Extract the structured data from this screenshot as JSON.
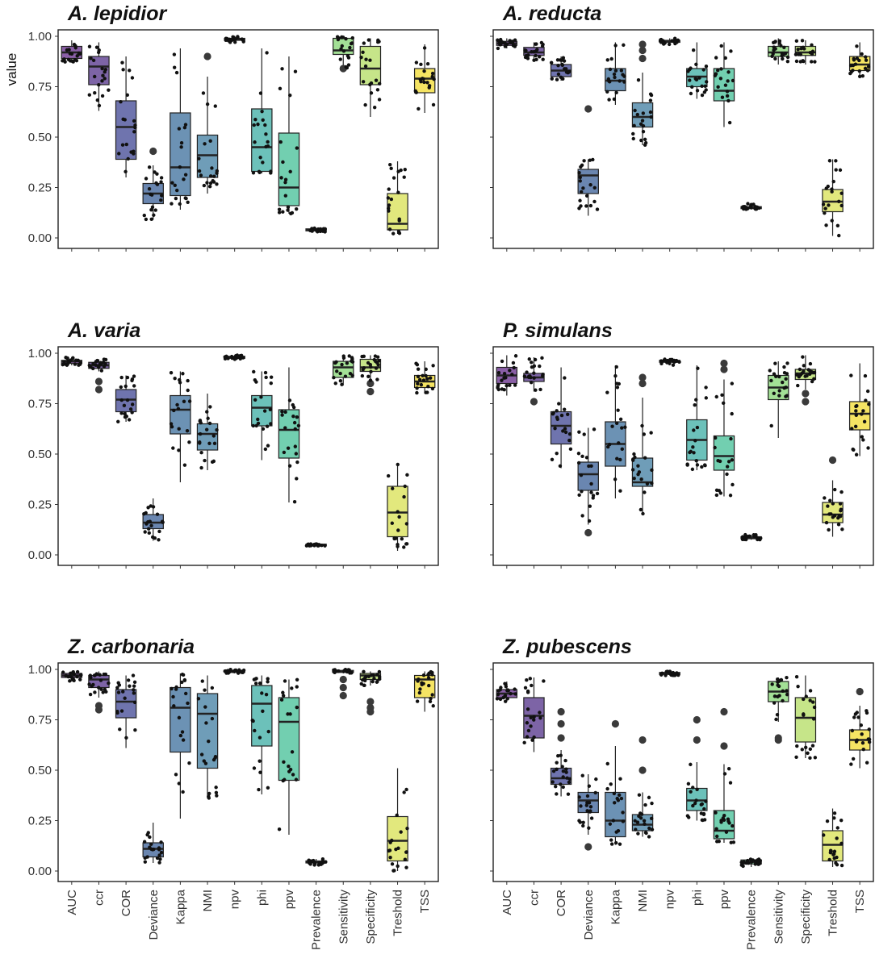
{
  "chart_data": {
    "type": "box",
    "ylabel": "value",
    "ylim": [
      0,
      1
    ],
    "yticks": [
      "0.00",
      "0.25",
      "0.50",
      "0.75",
      "1.00"
    ],
    "categories": [
      "AUC",
      "ccr",
      "COR",
      "Deviance",
      "Kappa",
      "NMI",
      "npv",
      "phi",
      "ppv",
      "Prevalence",
      "Sensitivity",
      "Specificity",
      "Treshold",
      "TSS"
    ],
    "colors": [
      "#8a5fa6",
      "#7d64a6",
      "#6f74ae",
      "#6a86b0",
      "#6c92b4",
      "#6f9db8",
      "#6fb3bd",
      "#6cc1ba",
      "#72cfb0",
      "#8bd9a2",
      "#a3e096",
      "#c6e589",
      "#e2e87d",
      "#f5e463"
    ],
    "panels": [
      {
        "title": "A. lepidior",
        "boxes": [
          [
            0.87,
            0.89,
            0.92,
            0.95,
            0.98
          ],
          [
            0.63,
            0.76,
            0.85,
            0.9,
            0.97
          ],
          [
            0.3,
            0.39,
            0.55,
            0.68,
            0.9
          ],
          [
            0.09,
            0.17,
            0.22,
            0.27,
            0.36
          ],
          [
            0.14,
            0.21,
            0.35,
            0.62,
            0.94
          ],
          [
            0.22,
            0.3,
            0.41,
            0.51,
            0.8
          ],
          [
            0.97,
            0.98,
            0.985,
            0.99,
            1.0
          ],
          [
            0.32,
            0.33,
            0.45,
            0.64,
            0.94
          ],
          [
            0.12,
            0.16,
            0.25,
            0.52,
            0.9
          ],
          [
            0.03,
            0.035,
            0.04,
            0.045,
            0.05
          ],
          [
            0.84,
            0.91,
            0.93,
            0.99,
            1.0
          ],
          [
            0.6,
            0.76,
            0.84,
            0.95,
            0.99
          ],
          [
            0.02,
            0.04,
            0.07,
            0.22,
            0.38
          ],
          [
            0.62,
            0.72,
            0.79,
            0.84,
            0.96
          ]
        ],
        "outliers": [
          [],
          [],
          [],
          [
            0.43
          ],
          [],
          [
            0.9
          ],
          [],
          [],
          [],
          [],
          [
            0.84
          ],
          [],
          [],
          []
        ]
      },
      {
        "title": "A. reducta",
        "boxes": [
          [
            0.94,
            0.955,
            0.965,
            0.975,
            0.99
          ],
          [
            0.88,
            0.905,
            0.92,
            0.945,
            0.97
          ],
          [
            0.78,
            0.8,
            0.83,
            0.86,
            0.9
          ],
          [
            0.11,
            0.22,
            0.31,
            0.34,
            0.39
          ],
          [
            0.66,
            0.73,
            0.78,
            0.84,
            0.97
          ],
          [
            0.46,
            0.55,
            0.6,
            0.67,
            0.82
          ],
          [
            0.96,
            0.97,
            0.975,
            0.98,
            0.99
          ],
          [
            0.69,
            0.75,
            0.8,
            0.84,
            0.97
          ],
          [
            0.55,
            0.68,
            0.73,
            0.84,
            0.97
          ],
          [
            0.14,
            0.145,
            0.15,
            0.155,
            0.17
          ],
          [
            0.86,
            0.9,
            0.92,
            0.95,
            0.99
          ],
          [
            0.86,
            0.905,
            0.92,
            0.95,
            0.98
          ],
          [
            0.01,
            0.13,
            0.18,
            0.24,
            0.39
          ],
          [
            0.8,
            0.83,
            0.86,
            0.9,
            0.97
          ]
        ],
        "outliers": [
          [],
          [],
          [],
          [
            0.64
          ],
          [],
          [
            0.89,
            0.93,
            0.96
          ],
          [],
          [],
          [],
          [],
          [],
          [],
          [],
          []
        ]
      },
      {
        "title": "A. varia",
        "boxes": [
          [
            0.94,
            0.95,
            0.96,
            0.965,
            0.98
          ],
          [
            0.91,
            0.925,
            0.94,
            0.955,
            0.97
          ],
          [
            0.66,
            0.71,
            0.77,
            0.82,
            0.89
          ],
          [
            0.07,
            0.13,
            0.16,
            0.2,
            0.28
          ],
          [
            0.36,
            0.6,
            0.72,
            0.79,
            0.91
          ],
          [
            0.42,
            0.52,
            0.6,
            0.65,
            0.8
          ],
          [
            0.97,
            0.975,
            0.98,
            0.985,
            0.99
          ],
          [
            0.47,
            0.64,
            0.73,
            0.79,
            0.91
          ],
          [
            0.26,
            0.48,
            0.62,
            0.72,
            0.93
          ],
          [
            0.045,
            0.048,
            0.05,
            0.053,
            0.056
          ],
          [
            0.84,
            0.88,
            0.93,
            0.96,
            0.99
          ],
          [
            0.86,
            0.91,
            0.93,
            0.97,
            0.99
          ],
          [
            0.02,
            0.09,
            0.21,
            0.34,
            0.45
          ],
          [
            0.8,
            0.83,
            0.86,
            0.89,
            0.96
          ]
        ],
        "outliers": [
          [],
          [
            0.82,
            0.86
          ],
          [],
          [],
          [],
          [],
          [],
          [],
          [],
          [],
          [],
          [
            0.81,
            0.85
          ],
          [],
          []
        ]
      },
      {
        "title": "P. simulans",
        "boxes": [
          [
            0.79,
            0.85,
            0.89,
            0.93,
            0.99
          ],
          [
            0.81,
            0.86,
            0.88,
            0.9,
            0.98
          ],
          [
            0.43,
            0.55,
            0.64,
            0.71,
            0.93
          ],
          [
            0.15,
            0.32,
            0.4,
            0.46,
            0.63
          ],
          [
            0.28,
            0.44,
            0.55,
            0.66,
            0.94
          ],
          [
            0.2,
            0.34,
            0.36,
            0.48,
            0.78
          ],
          [
            0.94,
            0.955,
            0.96,
            0.965,
            0.97
          ],
          [
            0.42,
            0.47,
            0.57,
            0.67,
            0.94
          ],
          [
            0.29,
            0.42,
            0.49,
            0.59,
            0.87
          ],
          [
            0.075,
            0.08,
            0.085,
            0.09,
            0.1
          ],
          [
            0.58,
            0.77,
            0.83,
            0.89,
            0.96
          ],
          [
            0.82,
            0.87,
            0.9,
            0.92,
            0.99
          ],
          [
            0.09,
            0.16,
            0.2,
            0.26,
            0.37
          ],
          [
            0.49,
            0.62,
            0.7,
            0.76,
            0.95
          ]
        ],
        "outliers": [
          [],
          [
            0.76
          ],
          [],
          [
            0.11
          ],
          [],
          [
            0.85,
            0.88
          ],
          [],
          [],
          [
            0.92,
            0.95
          ],
          [],
          [],
          [
            0.76,
            0.8
          ],
          [
            0.47
          ],
          []
        ]
      },
      {
        "title": "Z. carbonaria",
        "boxes": [
          [
            0.94,
            0.96,
            0.97,
            0.98,
            0.99
          ],
          [
            0.86,
            0.91,
            0.95,
            0.97,
            0.99
          ],
          [
            0.61,
            0.76,
            0.84,
            0.9,
            0.97
          ],
          [
            0.04,
            0.07,
            0.11,
            0.14,
            0.24
          ],
          [
            0.26,
            0.59,
            0.81,
            0.91,
            0.98
          ],
          [
            0.36,
            0.51,
            0.78,
            0.88,
            0.97
          ],
          [
            0.98,
            0.985,
            0.99,
            0.995,
            1.0
          ],
          [
            0.38,
            0.62,
            0.83,
            0.92,
            0.97
          ],
          [
            0.18,
            0.45,
            0.74,
            0.86,
            0.95
          ],
          [
            0.03,
            0.04,
            0.045,
            0.05,
            0.06
          ],
          [
            0.98,
            0.985,
            0.99,
            0.995,
            1.0
          ],
          [
            0.92,
            0.95,
            0.97,
            0.98,
            0.99
          ],
          [
            0.0,
            0.05,
            0.15,
            0.27,
            0.51
          ],
          [
            0.79,
            0.86,
            0.95,
            0.97,
            0.99
          ]
        ],
        "outliers": [
          [],
          [
            0.8,
            0.82
          ],
          [],
          [],
          [],
          [],
          [],
          [],
          [],
          [],
          [
            0.87,
            0.91,
            0.95
          ],
          [
            0.79,
            0.81,
            0.84
          ],
          [],
          []
        ]
      },
      {
        "title": "Z. pubescens",
        "boxes": [
          [
            0.84,
            0.86,
            0.88,
            0.9,
            0.94
          ],
          [
            0.59,
            0.66,
            0.77,
            0.86,
            0.96
          ],
          [
            0.37,
            0.43,
            0.46,
            0.51,
            0.6
          ],
          [
            0.18,
            0.29,
            0.35,
            0.39,
            0.48
          ],
          [
            0.13,
            0.17,
            0.25,
            0.39,
            0.62
          ],
          [
            0.17,
            0.2,
            0.23,
            0.28,
            0.39
          ],
          [
            0.97,
            0.975,
            0.98,
            0.985,
            0.99
          ],
          [
            0.25,
            0.3,
            0.35,
            0.41,
            0.54
          ],
          [
            0.14,
            0.16,
            0.2,
            0.3,
            0.53
          ],
          [
            0.02,
            0.035,
            0.045,
            0.055,
            0.06
          ],
          [
            0.74,
            0.84,
            0.89,
            0.94,
            0.96
          ],
          [
            0.56,
            0.64,
            0.76,
            0.86,
            0.97
          ],
          [
            0.02,
            0.05,
            0.13,
            0.2,
            0.31
          ],
          [
            0.51,
            0.6,
            0.65,
            0.7,
            0.82
          ]
        ],
        "outliers": [
          [],
          [],
          [
            0.66,
            0.73,
            0.79
          ],
          [
            0.12
          ],
          [
            0.73
          ],
          [
            0.5,
            0.65
          ],
          [],
          [
            0.65,
            0.75
          ],
          [
            0.62,
            0.79
          ],
          [],
          [
            0.65,
            0.66
          ],
          [],
          [],
          [
            0.89
          ]
        ]
      }
    ]
  }
}
